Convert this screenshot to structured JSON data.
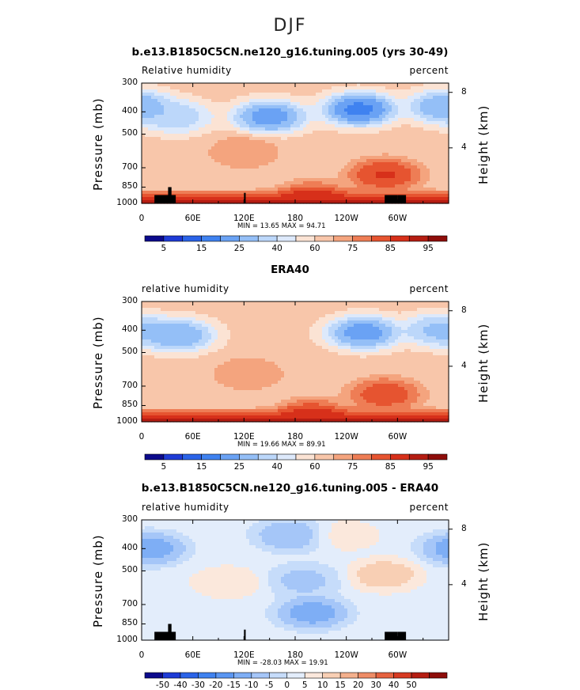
{
  "page": {
    "title": "DJF"
  },
  "colorbars": {
    "rh": {
      "colors": [
        "#0c0a8c",
        "#1e3bd6",
        "#2a63e8",
        "#3f82f0",
        "#6aa2f4",
        "#94bff7",
        "#bcd7fa",
        "#dde9fb",
        "#fbe3d4",
        "#f8c6aa",
        "#f4a47e",
        "#ee7d55",
        "#e65430",
        "#d7301a",
        "#b51d12",
        "#8e0d0a"
      ],
      "labels": [
        "5",
        "15",
        "25",
        "40",
        "60",
        "75",
        "85",
        "95"
      ]
    },
    "diff": {
      "colors": [
        "#0c0a8c",
        "#1e3bd6",
        "#2a63e8",
        "#3f82f0",
        "#5a96f2",
        "#7eaef5",
        "#a5c6f8",
        "#c6dcfa",
        "#e3edfb",
        "#fbe8dc",
        "#f8cfb4",
        "#f4b08d",
        "#ee8c66",
        "#e6623f",
        "#d73a22",
        "#b51d12",
        "#8e0d0a"
      ],
      "labels": [
        "-50",
        "-40",
        "-30",
        "-20",
        "-15",
        "-10",
        "-5",
        "0",
        "5",
        "10",
        "15",
        "20",
        "30",
        "40",
        "50"
      ]
    }
  },
  "panels": [
    {
      "title": "b.e13.B1850C5CN.ne120_g16.tuning.005 (yrs 30-49)",
      "left_label": "Relative humidity",
      "right_label": "percent",
      "y_title": "Pressure (mb)",
      "y2_title": "Height (km)",
      "stats": "MIN =   13.65   MAX =   94.71",
      "colorbar": "rh",
      "show_topography": true
    },
    {
      "title": "ERA40",
      "left_label": "relative humidity",
      "right_label": "percent",
      "y_title": "Pressure (mb)",
      "y2_title": "Height (km)",
      "stats": "MIN =   19.66   MAX =   89.91",
      "colorbar": "rh",
      "show_topography": false
    },
    {
      "title": "b.e13.B1850C5CN.ne120_g16.tuning.005 - ERA40",
      "left_label": "relative humidity",
      "right_label": "percent",
      "y_title": "Pressure (mb)",
      "y2_title": "Height (km)",
      "stats": "MIN =  -28.03   MAX =   19.91",
      "colorbar": "diff",
      "show_topography": true
    }
  ],
  "chart_data": [
    {
      "type": "heatmap",
      "title": "b.e13.B1850C5CN.ne120_g16.tuning.005 (yrs 30-49)",
      "variable": "Relative humidity",
      "units": "percent",
      "xlabel": "",
      "ylabel": "Pressure (mb)",
      "y2label": "Height (km)",
      "x_ticks": [
        "0",
        "60E",
        "120E",
        "180",
        "120W",
        "60W"
      ],
      "y_ticks": [
        "300",
        "400",
        "500",
        "700",
        "850",
        "1000"
      ],
      "y2_ticks": [
        "8",
        "4"
      ],
      "xlim": [
        0,
        360
      ],
      "ylim": [
        1000,
        300
      ],
      "min": 13.65,
      "max": 94.71,
      "features": [
        {
          "lon": 150,
          "p": 420,
          "value": 20
        },
        {
          "lon": 255,
          "p": 390,
          "value": 14
        },
        {
          "lon": 40,
          "p": 420,
          "value": 35
        },
        {
          "lon": 355,
          "p": 380,
          "value": 25
        },
        {
          "lon": 120,
          "p": 600,
          "value": 70
        },
        {
          "lon": 285,
          "p": 750,
          "value": 88
        },
        {
          "lon": 200,
          "p": 950,
          "value": 88
        }
      ]
    },
    {
      "type": "heatmap",
      "title": "ERA40",
      "variable": "relative humidity",
      "units": "percent",
      "xlabel": "",
      "ylabel": "Pressure (mb)",
      "y2label": "Height (km)",
      "x_ticks": [
        "0",
        "60E",
        "120E",
        "180",
        "120W",
        "60W"
      ],
      "y_ticks": [
        "300",
        "400",
        "500",
        "700",
        "850",
        "1000"
      ],
      "y2_ticks": [
        "8",
        "4"
      ],
      "xlim": [
        0,
        360
      ],
      "ylim": [
        1000,
        300
      ],
      "min": 19.66,
      "max": 89.91,
      "features": [
        {
          "lon": 42,
          "p": 420,
          "value": 25
        },
        {
          "lon": 260,
          "p": 410,
          "value": 20
        },
        {
          "lon": 350,
          "p": 400,
          "value": 30
        },
        {
          "lon": 125,
          "p": 620,
          "value": 70
        },
        {
          "lon": 285,
          "p": 760,
          "value": 85
        },
        {
          "lon": 200,
          "p": 940,
          "value": 87
        }
      ]
    },
    {
      "type": "heatmap",
      "title": "b.e13.B1850C5CN.ne120_g16.tuning.005 - ERA40",
      "variable": "relative humidity",
      "units": "percent",
      "xlabel": "",
      "ylabel": "Pressure (mb)",
      "y2label": "Height (km)",
      "x_ticks": [
        "0",
        "60E",
        "120E",
        "180",
        "120W",
        "60W"
      ],
      "y_ticks": [
        "300",
        "400",
        "500",
        "700",
        "850",
        "1000"
      ],
      "y2_ticks": [
        "8",
        "4"
      ],
      "xlim": [
        0,
        360
      ],
      "ylim": [
        1000,
        300
      ],
      "min": -28.03,
      "max": 19.91,
      "features": [
        {
          "lon": 200,
          "p": 760,
          "value": -25
        },
        {
          "lon": 175,
          "p": 350,
          "value": -20
        },
        {
          "lon": 190,
          "p": 550,
          "value": -15
        },
        {
          "lon": 10,
          "p": 400,
          "value": -25
        },
        {
          "lon": 285,
          "p": 520,
          "value": 18
        },
        {
          "lon": 100,
          "p": 560,
          "value": 10
        },
        {
          "lon": 240,
          "p": 350,
          "value": 8
        }
      ]
    }
  ]
}
